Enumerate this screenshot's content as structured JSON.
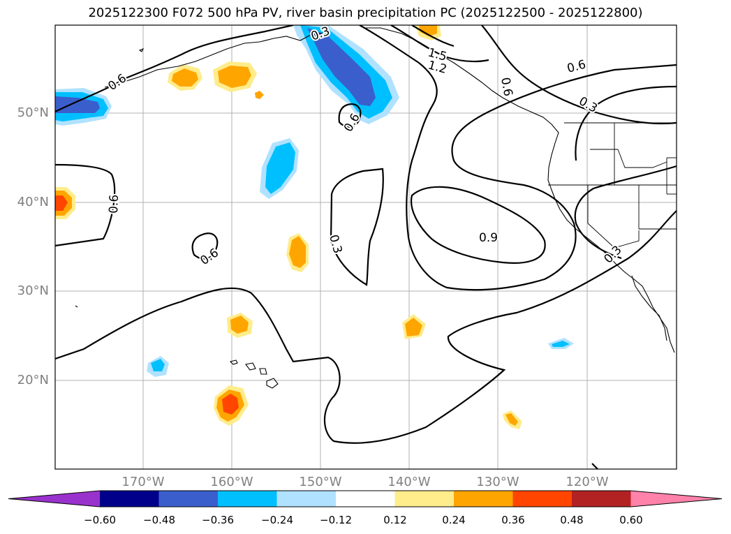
{
  "title": "2025122300 F072 500 hPa PV, river basin precipitation PC (2025122500 - 2025122800)",
  "latitude_labels": [
    "50°N",
    "40°N",
    "30°N",
    "20°N"
  ],
  "longitude_labels": [
    "170°W",
    "160°W",
    "150°W",
    "140°W",
    "130°W",
    "120°W"
  ],
  "contour_labels": [
    "0.3",
    "0.6",
    "1.5",
    "1.2",
    "0.6",
    "0.6",
    "0.3",
    "0.6",
    "0.6",
    "0.3",
    "0.9",
    "0.3",
    "0.6"
  ],
  "colorbar": {
    "ticks": [
      "−0.60",
      "−0.48",
      "−0.36",
      "−0.24",
      "−0.12",
      "0.12",
      "0.24",
      "0.36",
      "0.48",
      "0.60"
    ],
    "colors": [
      "#9932cc",
      "#00008b",
      "#3a5fcd",
      "#00bfff",
      "#b0e2ff",
      "#ffffff",
      "#ffec8b",
      "#ffa500",
      "#ff4500",
      "#b22222",
      "#ff82ab"
    ]
  },
  "colors": {
    "strong_negative": "#3a5fcd",
    "negative": "#00bfff",
    "weak_negative": "#b0e2ff",
    "weak_positive": "#ffec8b",
    "positive": "#ffa500",
    "strong_positive": "#ff4500",
    "grid": "#b0b0b0",
    "tick_text": "#808080"
  }
}
